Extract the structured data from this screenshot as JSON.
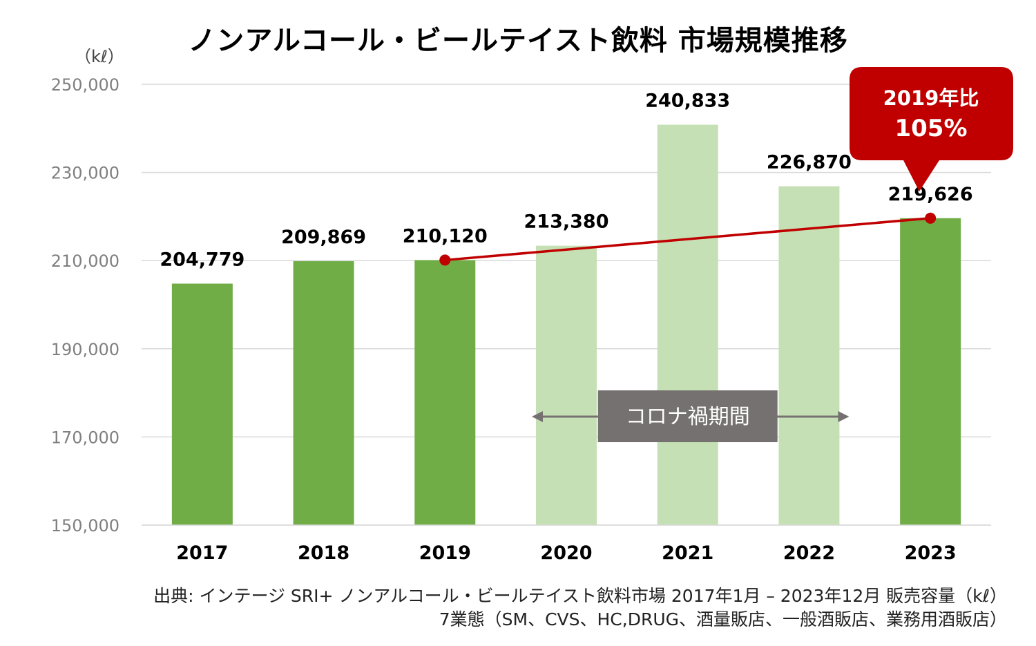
{
  "title": "ノンアルコール・ビールテイスト飲料 市場規模推移",
  "unit_label": "（kℓ）",
  "source_line1": "出典: インテージ SRI+  ノンアルコール・ビールテイスト飲料市場 2017年1月 – 2023年12月 販売容量（kℓ）",
  "source_line2": "7業態（SM、CVS、HC,DRUG、酒量販店、一般酒販店、業務用酒販店）",
  "chart_data": {
    "type": "bar",
    "title": "ノンアルコール・ビールテイスト飲料 市場規模推移",
    "ylabel": "（kℓ）",
    "ylim": [
      150000,
      250000
    ],
    "yticks": [
      150000,
      170000,
      190000,
      210000,
      230000,
      250000
    ],
    "ytick_labels": [
      "150,000",
      "170,000",
      "190,000",
      "210,000",
      "230,000",
      "250,000"
    ],
    "grid": true,
    "categories": [
      "2017",
      "2018",
      "2019",
      "2020",
      "2021",
      "2022",
      "2023"
    ],
    "values": [
      204779,
      209869,
      210120,
      213380,
      240833,
      226870,
      219626
    ],
    "value_labels": [
      "204,779",
      "209,869",
      "210,120",
      "213,380",
      "240,833",
      "226,870",
      "219,626"
    ],
    "highlight": [
      true,
      true,
      true,
      false,
      false,
      false,
      true
    ],
    "colors": {
      "bar_dark": "#70ad47",
      "bar_light": "#c5e0b4",
      "trend": "#c00000",
      "covid_box": "#767171"
    },
    "trend_line": {
      "from": "2019",
      "to": "2023"
    },
    "callout": {
      "line1": "2019年比",
      "line2": "105%"
    },
    "covid_period": {
      "label": "コロナ禍期間",
      "from": "2020",
      "to": "2022"
    }
  }
}
